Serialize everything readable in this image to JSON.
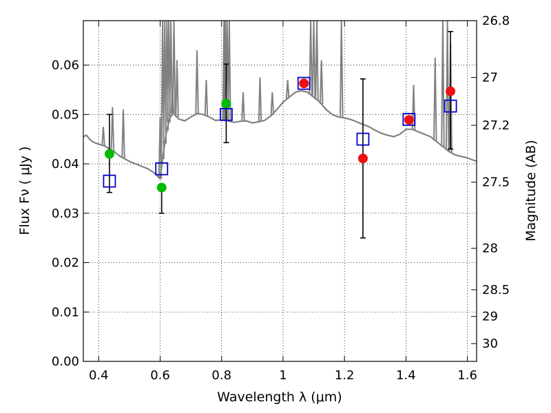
{
  "chart_data": {
    "type": "scatter",
    "xlabel": "Wavelength  λ (μm)",
    "ylabel": "Flux  Fν  ( μJy )",
    "ylabel_right": "Magnitude (AB)",
    "xlim": [
      0.35,
      1.63
    ],
    "ylim": [
      0.0,
      0.069
    ],
    "x_ticks": [
      0.4,
      0.6,
      0.8,
      1.0,
      1.2,
      1.4,
      1.6
    ],
    "x_tick_labels": [
      "0.4",
      "0.6",
      "0.8",
      "1",
      "1.2",
      "1.4",
      "1.6"
    ],
    "y_ticks": [
      0.0,
      0.01,
      0.02,
      0.03,
      0.04,
      0.05,
      0.06
    ],
    "y_tick_labels": [
      "0.00",
      "0.01",
      "0.02",
      "0.03",
      "0.04",
      "0.05",
      "0.06"
    ],
    "right_ticks": [
      {
        "label": "26.8",
        "flux": 0.069
      },
      {
        "label": "27",
        "flux": 0.0575
      },
      {
        "label": "27.2",
        "flux": 0.0478
      },
      {
        "label": "27.5",
        "flux": 0.0363
      },
      {
        "label": "28",
        "flux": 0.0229
      },
      {
        "label": "28.5",
        "flux": 0.0145
      },
      {
        "label": "29",
        "flux": 0.0091
      },
      {
        "label": "30",
        "flux": 0.0036
      }
    ],
    "grid": true,
    "colors": {
      "spectrum": "#808080",
      "model": "#0000cc",
      "hst": "#00bb00",
      "ir": "#ee1111",
      "errorbar": "#000000"
    },
    "series": [
      {
        "kind": "model_spectrum",
        "x": [
          0.35,
          0.36,
          0.37,
          0.38,
          0.39,
          0.4,
          0.41,
          0.42,
          0.43,
          0.44,
          0.45,
          0.46,
          0.47,
          0.48,
          0.5,
          0.52,
          0.54,
          0.56,
          0.58,
          0.6,
          0.61,
          0.62,
          0.63,
          0.64,
          0.65,
          0.66,
          0.68,
          0.7,
          0.72,
          0.74,
          0.76,
          0.78,
          0.8,
          0.82,
          0.84,
          0.86,
          0.88,
          0.9,
          0.92,
          0.94,
          0.96,
          0.98,
          1.0,
          1.02,
          1.04,
          1.06,
          1.08,
          1.1,
          1.12,
          1.14,
          1.16,
          1.18,
          1.2,
          1.22,
          1.24,
          1.26,
          1.28,
          1.3,
          1.32,
          1.34,
          1.36,
          1.38,
          1.4,
          1.42,
          1.44,
          1.46,
          1.48,
          1.5,
          1.52,
          1.54,
          1.56,
          1.58,
          1.6,
          1.63
        ],
        "y": [
          0.0455,
          0.0458,
          0.045,
          0.0445,
          0.0442,
          0.044,
          0.0438,
          0.0436,
          0.0432,
          0.0428,
          0.0425,
          0.042,
          0.0415,
          0.0412,
          0.0405,
          0.04,
          0.0395,
          0.039,
          0.0382,
          0.037,
          0.042,
          0.0462,
          0.049,
          0.0503,
          0.0498,
          0.0491,
          0.0487,
          0.0495,
          0.0502,
          0.05,
          0.0495,
          0.0488,
          0.0489,
          0.0487,
          0.0484,
          0.0486,
          0.0487,
          0.0483,
          0.0485,
          0.0488,
          0.0497,
          0.051,
          0.0525,
          0.0535,
          0.0545,
          0.0548,
          0.0545,
          0.0535,
          0.0525,
          0.051,
          0.05,
          0.0495,
          0.0493,
          0.049,
          0.0485,
          0.048,
          0.0475,
          0.0468,
          0.0462,
          0.0458,
          0.0455,
          0.046,
          0.047,
          0.047,
          0.0465,
          0.046,
          0.0455,
          0.0445,
          0.0435,
          0.0425,
          0.0418,
          0.0415,
          0.0412,
          0.0405
        ]
      },
      {
        "kind": "model_spikes",
        "x": [
          0.415,
          0.445,
          0.48,
          0.6,
          0.608,
          0.615,
          0.622,
          0.628,
          0.635,
          0.64,
          0.645,
          0.655,
          0.72,
          0.75,
          0.808,
          0.812,
          0.818,
          0.825,
          0.87,
          0.925,
          0.965,
          1.015,
          1.09,
          1.1,
          1.11,
          1.125,
          1.19,
          1.425,
          1.495,
          1.52,
          1.535,
          1.545
        ],
        "y": [
          0.0475,
          0.0515,
          0.051,
          0.0495,
          0.069,
          0.069,
          0.069,
          0.069,
          0.069,
          0.055,
          0.069,
          0.061,
          0.063,
          0.057,
          0.069,
          0.069,
          0.069,
          0.069,
          0.0545,
          0.0575,
          0.0545,
          0.057,
          0.069,
          0.069,
          0.069,
          0.061,
          0.069,
          0.056,
          0.0615,
          0.069,
          0.069,
          0.0645
        ]
      },
      {
        "kind": "model_photometry",
        "x": [
          0.435,
          0.605,
          0.815,
          1.068,
          1.26,
          1.41,
          1.545
        ],
        "y": [
          0.0365,
          0.039,
          0.05,
          0.0563,
          0.045,
          0.049,
          0.0517
        ]
      },
      {
        "kind": "hst_photometry",
        "x": [
          0.435,
          0.605,
          0.815
        ],
        "y": [
          0.042,
          0.0352,
          0.0522
        ],
        "yerr_low": [
          0.0342,
          0.03,
          0.0443
        ],
        "yerr_high": [
          0.05,
          0.0352,
          0.0602
        ]
      },
      {
        "kind": "ir_photometry",
        "x": [
          1.068,
          1.26,
          1.41,
          1.545
        ],
        "y": [
          0.0563,
          0.0411,
          0.0489,
          0.0547
        ],
        "yerr_low": [
          null,
          0.025,
          null,
          0.043
        ],
        "yerr_high": [
          null,
          0.0572,
          null,
          0.0668
        ]
      }
    ]
  }
}
